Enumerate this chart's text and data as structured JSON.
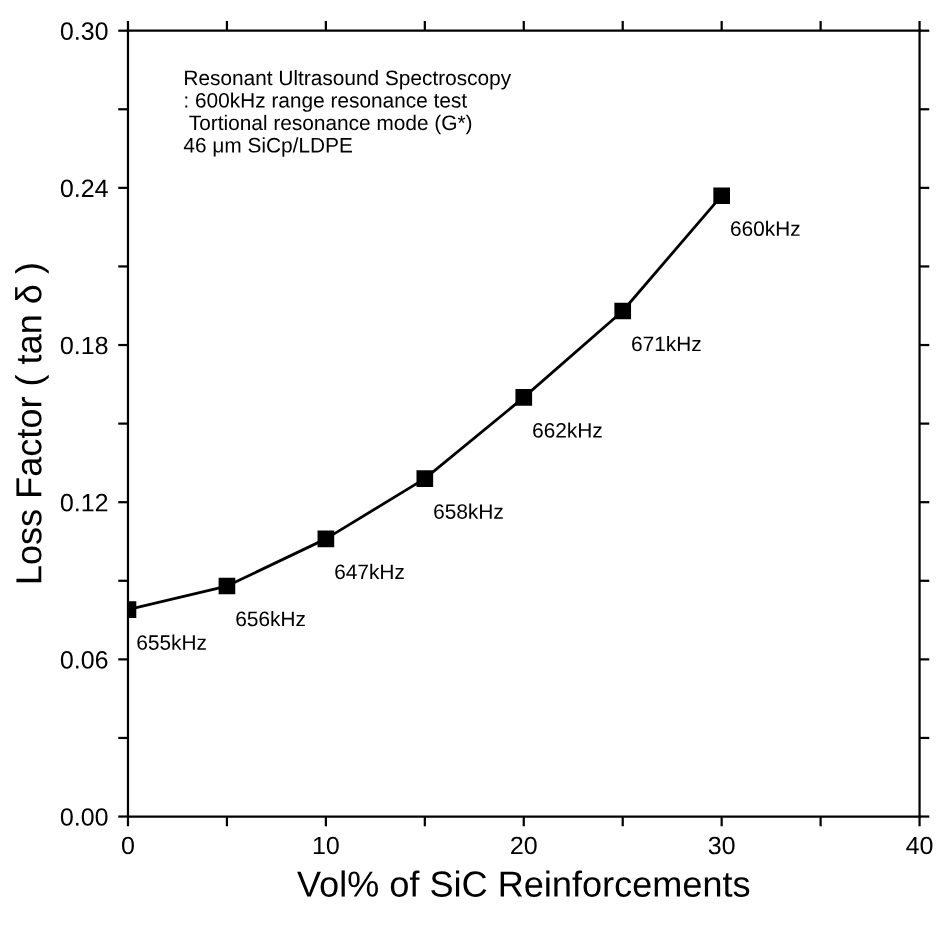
{
  "chart_data": {
    "type": "line",
    "xlabel": "Vol% of SiC Reinforcements",
    "ylabel": "Loss Factor ( tan δ )",
    "x": [
      0,
      5,
      10,
      15,
      20,
      25,
      30
    ],
    "series": [
      {
        "color": "#000000",
        "values": [
          0.079,
          0.088,
          0.106,
          0.129,
          0.16,
          0.193,
          0.237
        ]
      }
    ],
    "marker": "square",
    "line_style": "solid",
    "xlim": [
      0,
      40
    ],
    "ylim": [
      0.0,
      0.3
    ],
    "xticks": [
      {
        "value": 0,
        "label": "0"
      },
      {
        "value": 5,
        "label": null
      },
      {
        "value": 10,
        "label": "10"
      },
      {
        "value": 15,
        "label": null
      },
      {
        "value": 20,
        "label": "20"
      },
      {
        "value": 25,
        "label": null
      },
      {
        "value": 30,
        "label": "30"
      },
      {
        "value": 35,
        "label": null
      },
      {
        "value": 40,
        "label": "40"
      }
    ],
    "yticks": [
      {
        "value": 0.0,
        "label": "0.00"
      },
      {
        "value": 0.03,
        "label": null
      },
      {
        "value": 0.06,
        "label": "0.06"
      },
      {
        "value": 0.09,
        "label": null
      },
      {
        "value": 0.12,
        "label": "0.12"
      },
      {
        "value": 0.15,
        "label": null
      },
      {
        "value": 0.18,
        "label": "0.18"
      },
      {
        "value": 0.21,
        "label": null
      },
      {
        "value": 0.24,
        "label": "0.24"
      },
      {
        "value": 0.27,
        "label": null
      },
      {
        "value": 0.3,
        "label": "0.30"
      }
    ],
    "grid": false,
    "legend": false,
    "annotations": [
      "Resonant Ultrasound Spectroscopy\n: 600kHz range resonance test\n Tortional resonance mode (G*)\n46 μm SiCp/LDPE",
      {
        "text": "655kHz",
        "x": 0,
        "y": 0.079
      },
      {
        "text": "656kHz",
        "x": 5,
        "y": 0.088
      },
      {
        "text": "647kHz",
        "x": 10,
        "y": 0.106
      },
      {
        "text": "658kHz",
        "x": 15,
        "y": 0.129
      },
      {
        "text": "662kHz",
        "x": 20,
        "y": 0.16
      },
      {
        "text": "671kHz",
        "x": 25,
        "y": 0.193
      },
      {
        "text": "660kHz",
        "x": 30,
        "y": 0.237
      }
    ]
  }
}
